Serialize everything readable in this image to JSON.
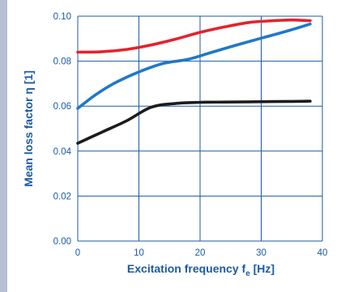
{
  "chart_data": {
    "type": "line",
    "xlabel": "Excitation frequency f",
    "xlabel_sub": "e",
    "xlabel_unit": " [Hz]",
    "ylabel": "Mean loss factor η [1]",
    "xlim": [
      0,
      40
    ],
    "ylim": [
      0,
      0.1
    ],
    "x_ticks": [
      "0",
      "10",
      "20",
      "30",
      "40"
    ],
    "y_ticks": [
      "0.00",
      "0.02",
      "0.04",
      "0.06",
      "0.08",
      "0.10"
    ],
    "grid": true,
    "series": [
      {
        "color": "#e3232c",
        "x": [
          0,
          4,
          8,
          12,
          16,
          20,
          24,
          28,
          32,
          35,
          38
        ],
        "y": [
          0.084,
          0.0842,
          0.0852,
          0.0872,
          0.0898,
          0.0928,
          0.0952,
          0.0972,
          0.098,
          0.0983,
          0.098
        ]
      },
      {
        "color": "#1f78c8",
        "x": [
          0,
          3,
          6,
          10,
          14,
          18,
          22,
          26,
          30,
          34,
          38
        ],
        "y": [
          0.059,
          0.0652,
          0.0702,
          0.0752,
          0.079,
          0.0808,
          0.084,
          0.0872,
          0.0902,
          0.0932,
          0.0965
        ]
      },
      {
        "color": "#1c1c1c",
        "x": [
          0,
          4,
          8,
          12,
          16,
          20,
          24,
          28,
          32,
          35,
          38
        ],
        "y": [
          0.0435,
          0.0485,
          0.0535,
          0.0595,
          0.0612,
          0.0617,
          0.0618,
          0.0619,
          0.062,
          0.0621,
          0.0622
        ]
      }
    ]
  }
}
